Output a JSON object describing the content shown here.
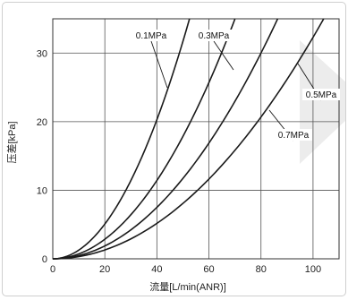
{
  "chart_data": {
    "type": "line",
    "xlabel": "流量[L/min(ANR)]",
    "ylabel": "压差[kPa]",
    "xlim": [
      0,
      110
    ],
    "ylim": [
      0,
      35
    ],
    "x_ticks": [
      0,
      20,
      40,
      60,
      80,
      100
    ],
    "y_ticks": [
      0,
      10,
      20,
      30
    ],
    "grid": true,
    "series": [
      {
        "name": "0.1MPa",
        "points": [
          [
            0,
            0
          ],
          [
            10,
            1.3
          ],
          [
            20,
            5.1
          ],
          [
            30,
            11.4
          ],
          [
            40,
            20.3
          ],
          [
            50,
            31.7
          ],
          [
            52,
            35
          ]
        ]
      },
      {
        "name": "0.3MPa",
        "points": [
          [
            0,
            0
          ],
          [
            20,
            2.9
          ],
          [
            40,
            11.4
          ],
          [
            60,
            25.7
          ],
          [
            70,
            35
          ]
        ]
      },
      {
        "name": "0.5MPa",
        "points": [
          [
            0,
            0
          ],
          [
            20,
            1.9
          ],
          [
            40,
            7.5
          ],
          [
            60,
            16.9
          ],
          [
            80,
            30.0
          ],
          [
            92,
            35
          ]
        ]
      },
      {
        "name": "0.7MPa",
        "points": [
          [
            0,
            0
          ],
          [
            20,
            1.3
          ],
          [
            40,
            5.2
          ],
          [
            60,
            11.7
          ],
          [
            80,
            20.7
          ],
          [
            100,
            32.3
          ],
          [
            110,
            35
          ]
        ]
      }
    ]
  }
}
